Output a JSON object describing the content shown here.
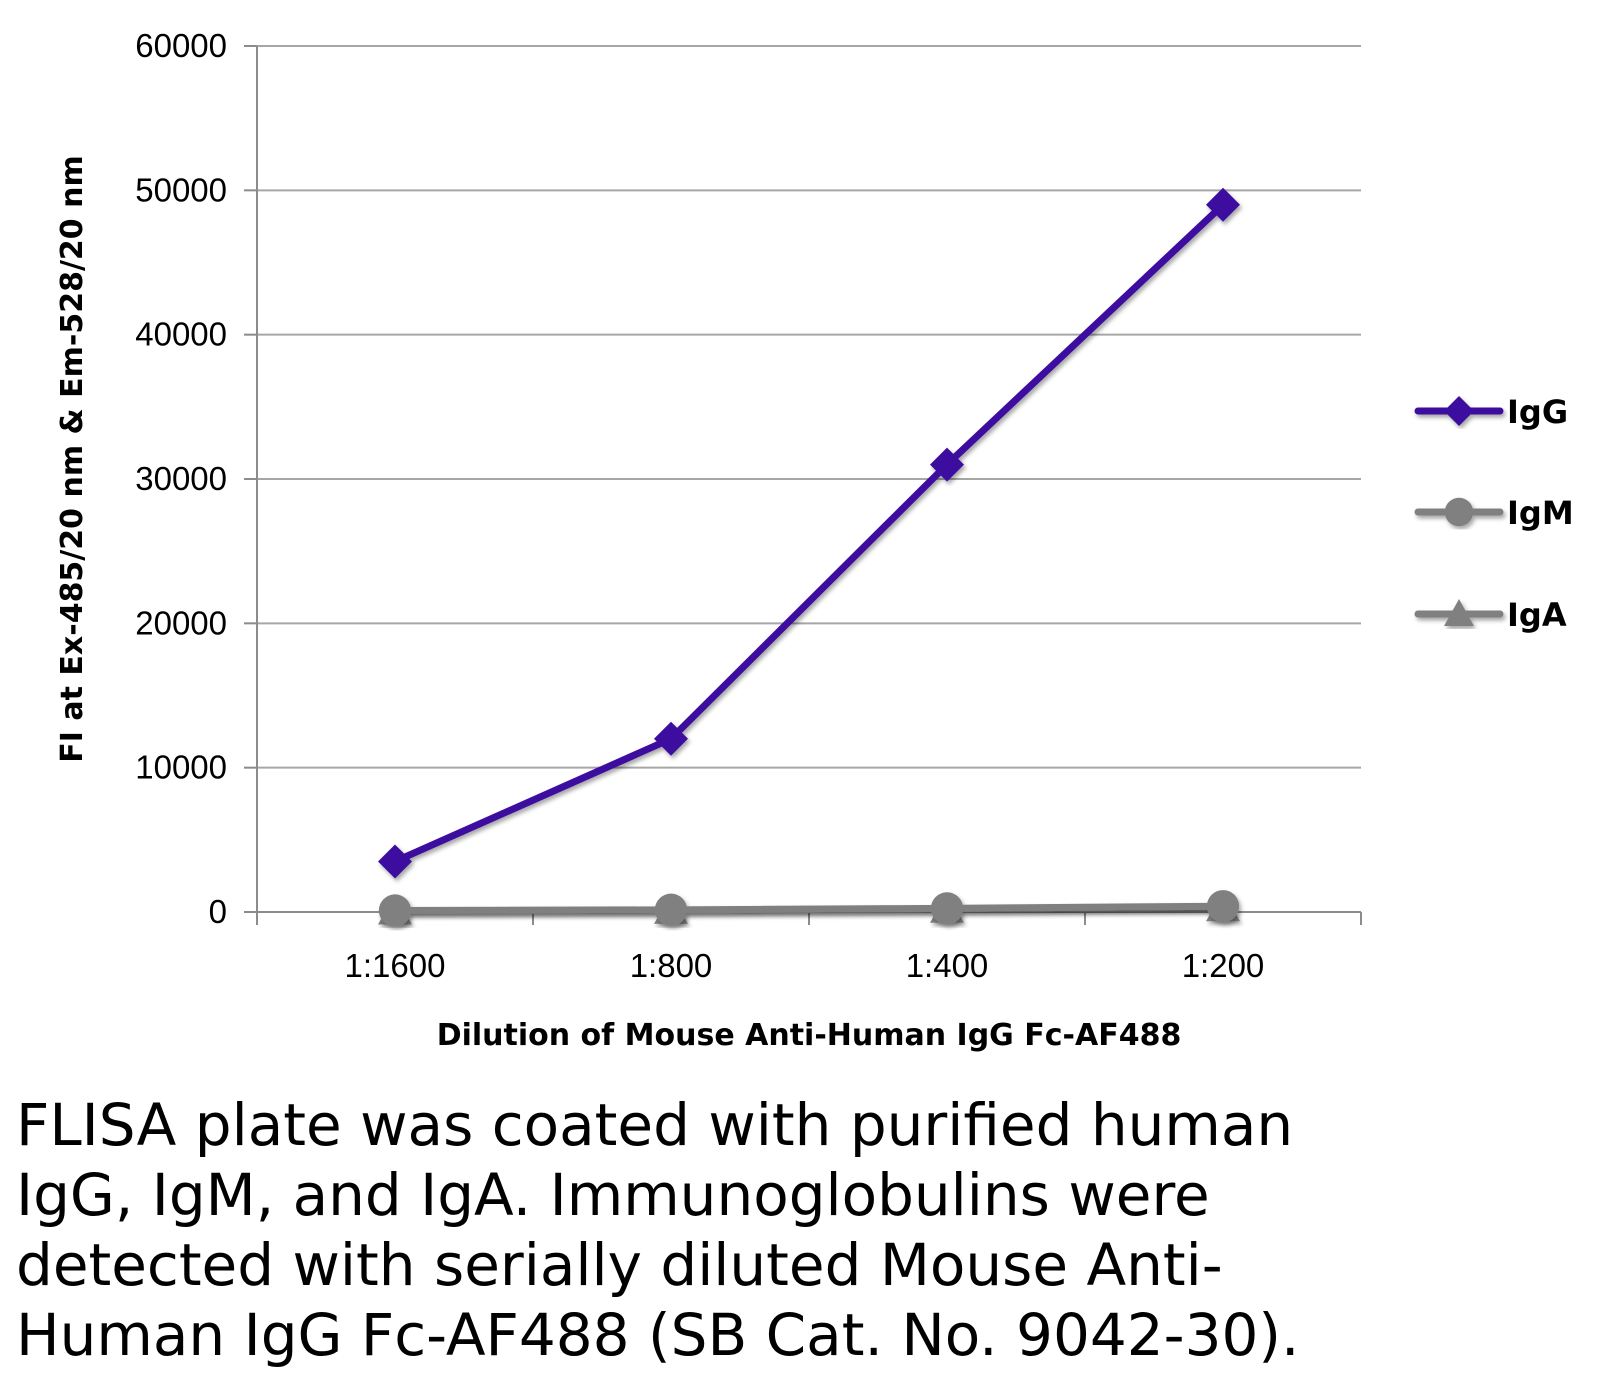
{
  "chart_data": {
    "type": "line",
    "title": "",
    "xlabel": "Dilution of Mouse Anti-Human IgG Fc-AF488",
    "ylabel": "FI at Ex-485/20 nm & Em-528/20 nm",
    "categories": [
      "1:1600",
      "1:800",
      "1:400",
      "1:200"
    ],
    "ylim": [
      0,
      60000
    ],
    "yticks": [
      0,
      10000,
      20000,
      30000,
      40000,
      50000,
      60000
    ],
    "ytick_labels": [
      "0",
      "10000",
      "20000",
      "30000",
      "40000",
      "50000",
      "60000"
    ],
    "grid": true,
    "legend_position": "right",
    "series": [
      {
        "name": "IgG",
        "values": [
          3500,
          12000,
          31000,
          49000
        ],
        "color": "#3d0ea0",
        "marker": "diamond"
      },
      {
        "name": "IgM",
        "values": [
          100,
          150,
          250,
          400
        ],
        "color": "#808080",
        "marker": "circle"
      },
      {
        "name": "IgA",
        "values": [
          80,
          120,
          200,
          300
        ],
        "color": "#808080",
        "marker": "triangle"
      }
    ]
  },
  "caption": {
    "lines": [
      "FLISA plate was coated with purified human",
      "IgG, IgM, and IgA.  Immunoglobulins were",
      "detected with serially diluted Mouse Anti-",
      "Human IgG Fc-AF488 (SB Cat. No. 9042-30)."
    ]
  }
}
